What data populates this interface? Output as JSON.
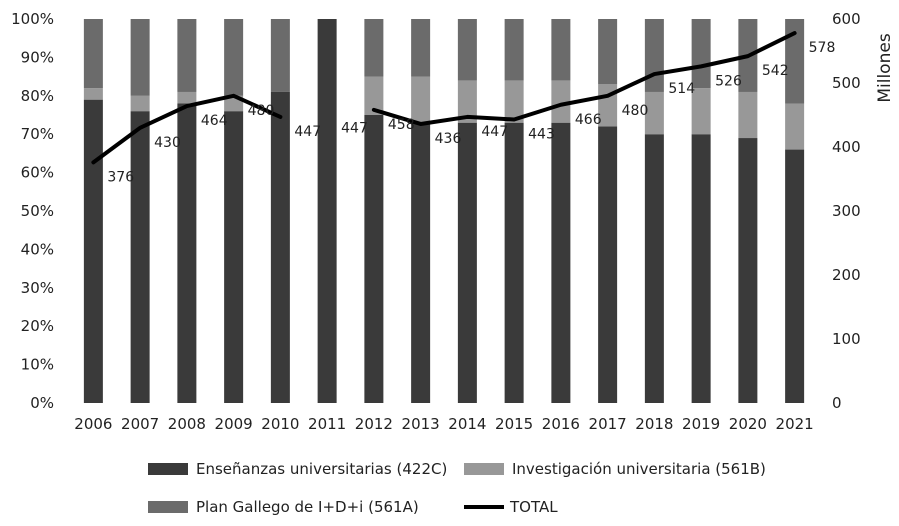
{
  "chart_data": {
    "type": "bar",
    "stacked": true,
    "percent_stacked": true,
    "categories": [
      "2006",
      "2007",
      "2008",
      "2009",
      "2010",
      "2011",
      "2012",
      "2013",
      "2014",
      "2015",
      "2016",
      "2017",
      "2018",
      "2019",
      "2020",
      "2021"
    ],
    "series": [
      {
        "name": "Enseñanzas universitarias (422C)",
        "color": "#3a3a3a",
        "values": [
          79,
          76,
          78,
          76,
          81,
          100,
          75,
          73,
          73,
          73,
          73,
          72,
          70,
          70,
          69,
          66
        ]
      },
      {
        "name": "Investigación universitaria (561B)",
        "color": "#989898",
        "values": [
          3,
          4,
          3,
          4,
          0,
          0,
          10,
          12,
          11,
          11,
          11,
          11,
          11,
          12,
          12,
          12
        ]
      },
      {
        "name": "Plan Gallego de I+D+i (561A)",
        "color": "#6b6b6b",
        "values": [
          18,
          20,
          19,
          20,
          19,
          0,
          15,
          15,
          16,
          16,
          16,
          17,
          19,
          18,
          19,
          22
        ]
      }
    ],
    "line": {
      "name": "TOTAL",
      "color": "#000000",
      "values": [
        376,
        430,
        464,
        480,
        447,
        null,
        458,
        436,
        447,
        443,
        466,
        480,
        514,
        526,
        542,
        578
      ],
      "labels": [
        "376",
        "430",
        "464",
        "480",
        "447",
        "447",
        "458",
        "436",
        "447",
        "443",
        "466",
        "480",
        "514",
        "526",
        "542",
        "578"
      ]
    },
    "y_left": {
      "ylim": [
        0,
        100
      ],
      "ticks": [
        "0%",
        "10%",
        "20%",
        "30%",
        "40%",
        "50%",
        "60%",
        "70%",
        "80%",
        "90%",
        "100%"
      ]
    },
    "y_right": {
      "ylim": [
        0,
        600
      ],
      "ticks": [
        "0",
        "100",
        "200",
        "300",
        "400",
        "500",
        "600"
      ],
      "label": "Millones"
    },
    "legend_position": "bottom",
    "grid": false
  }
}
